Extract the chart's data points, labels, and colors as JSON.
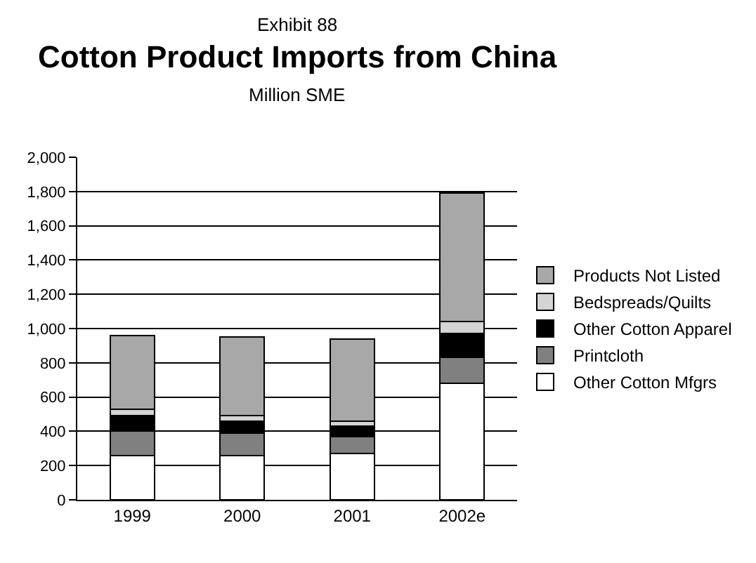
{
  "chart_data": {
    "type": "bar",
    "stacked": true,
    "title": "Cotton Product Imports from China",
    "subtitle": "Million SME",
    "annotations": [
      "Exhibit 88"
    ],
    "categories": [
      "1999",
      "2000",
      "2001",
      "2002e"
    ],
    "series": [
      {
        "name": "Other Cotton Mfgrs",
        "color": "#ffffff",
        "values": [
          260,
          260,
          270,
          680
        ]
      },
      {
        "name": "Printcloth",
        "color": "#808080",
        "values": [
          140,
          130,
          100,
          150
        ]
      },
      {
        "name": "Other Cotton Apparel",
        "color": "#000000",
        "values": [
          90,
          70,
          60,
          140
        ]
      },
      {
        "name": "Bedspreads/Quilts",
        "color": "#d4d4d4",
        "values": [
          40,
          30,
          30,
          70
        ]
      },
      {
        "name": "Products Not Listed",
        "color": "#a8a8a8",
        "values": [
          430,
          460,
          480,
          750
        ]
      }
    ],
    "ylim": [
      0,
      2000
    ],
    "yticks": [
      {
        "value": 0,
        "label": "0"
      },
      {
        "value": 200,
        "label": "200"
      },
      {
        "value": 400,
        "label": "400"
      },
      {
        "value": 600,
        "label": "600"
      },
      {
        "value": 800,
        "label": "800"
      },
      {
        "value": 1000,
        "label": "1,000"
      },
      {
        "value": 1200,
        "label": "1,200"
      },
      {
        "value": 1400,
        "label": "1,400"
      },
      {
        "value": 1600,
        "label": "1,600"
      },
      {
        "value": 1800,
        "label": "1,800"
      },
      {
        "value": 2000,
        "label": "2,000"
      }
    ],
    "grid": "y",
    "legend": "right"
  }
}
